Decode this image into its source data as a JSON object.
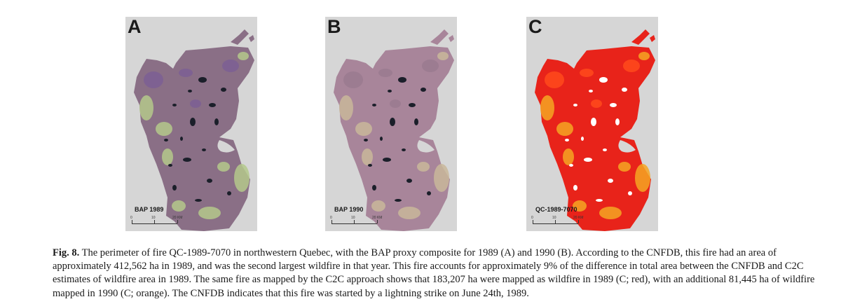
{
  "panels": [
    {
      "letter": "A",
      "map_label": "BAP 1989",
      "scale": {
        "zero": "0",
        "mid": "10",
        "end": "20 KM"
      },
      "palette": {
        "base": "#8a6f86",
        "accent": "#b4c98b",
        "lake": "#1b1f2a",
        "tint": "#7b5f94"
      }
    },
    {
      "letter": "B",
      "map_label": "BAP 1990",
      "scale": {
        "zero": "0",
        "mid": "10",
        "end": "20 KM"
      },
      "palette": {
        "base": "#a8859a",
        "accent": "#c9b79a",
        "lake": "#1b1f2a",
        "tint": "#9a7a8f"
      }
    },
    {
      "letter": "C",
      "map_label": "QC-1989-7070",
      "scale": {
        "zero": "0",
        "mid": "10",
        "end": "20 KM"
      },
      "palette": {
        "base": "#e8231a",
        "accent": "#f5a623",
        "lake": "#ffffff",
        "tint": "#ff4a1c"
      }
    }
  ],
  "caption": {
    "label": "Fig. 8.",
    "text": " The perimeter of fire QC-1989-7070 in northwestern Quebec, with the BAP proxy composite for 1989 (A) and 1990 (B). According to the CNFDB, this fire had an area of approximately 412,562 ha in 1989, and was the second largest wildfire in that year. This fire accounts for approximately 9% of the difference in total area between the CNFDB and C2C estimates of wildfire area in 1989. The same fire as mapped by the C2C approach shows that 183,207 ha were mapped as wildfire in 1989 (C; red), with an additional 81,445 ha of wildfire mapped in 1990 (C; orange). The CNFDB indicates that this fire was started by a lightning strike on June 24th, 1989."
  }
}
